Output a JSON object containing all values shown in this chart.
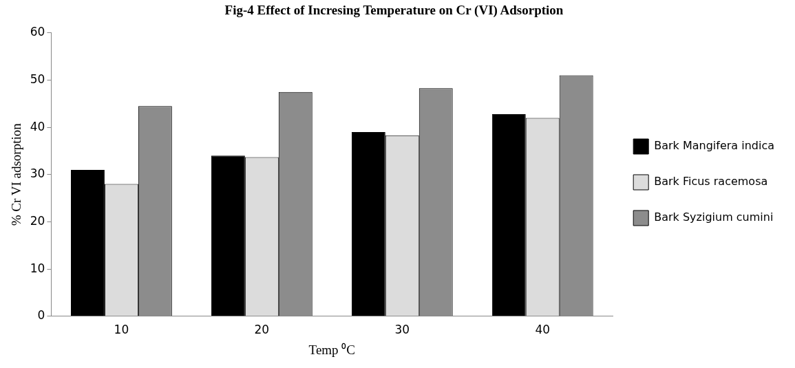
{
  "chart_data": {
    "type": "bar",
    "title": "Fig-4 Effect of Incresing Temperature on Cr (VI) Adsorption",
    "xlabel": "Temp ⁰C",
    "ylabel": "% Cr VI adsorption",
    "categories": [
      "10",
      "20",
      "30",
      "40"
    ],
    "series": [
      {
        "name": "Bark Mangifera indica",
        "color": "#000000",
        "values": [
          31,
          34,
          39,
          42.8
        ]
      },
      {
        "name": "Bark Ficus racemosa",
        "color": "#dcdcdc",
        "values": [
          28,
          33.7,
          38.3,
          42
        ]
      },
      {
        "name": "Bark Syzigium cumini",
        "color": "#8c8c8c",
        "values": [
          44.5,
          47.5,
          48.3,
          51
        ]
      }
    ],
    "ylim": [
      0,
      60
    ],
    "yticks": [
      0,
      10,
      20,
      30,
      40,
      50,
      60
    ],
    "grid": false,
    "legend": "right"
  }
}
